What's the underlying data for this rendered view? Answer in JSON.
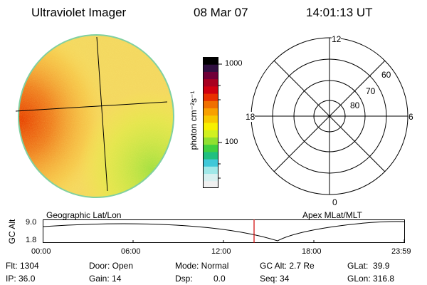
{
  "header": {
    "title": "Ultraviolet Imager",
    "date": "08 Mar 07",
    "time": "14:01:13 UT"
  },
  "colorbar": {
    "ticks": [
      "1000",
      "100"
    ],
    "unit_label": "photon cm⁻²s⁻¹",
    "colors": [
      "#f0f0f0",
      "#d8f0f0",
      "#a0e8e8",
      "#40c8d8",
      "#20c080",
      "#40d040",
      "#90e030",
      "#d0f020",
      "#f8f000",
      "#f8c800",
      "#f8a000",
      "#f07000",
      "#e83000",
      "#d00010",
      "#a80020",
      "#700038",
      "#301040",
      "#000000"
    ]
  },
  "polar": {
    "hour_labels": {
      "top": "12",
      "left": "18",
      "right": "6",
      "bottom": "0"
    },
    "lat_labels": [
      "60",
      "70",
      "80"
    ]
  },
  "timeline": {
    "left_label": "Geographic Lat/Lon",
    "right_label": "Apex MLat/MLT",
    "axis_title": "GC Alt",
    "y_ticks": [
      "9.0",
      "1.8"
    ],
    "x_ticks": [
      "00:00",
      "06:00",
      "12:00",
      "18:00",
      "23:59"
    ],
    "marker_color": "#d00000"
  },
  "info": {
    "flt": "Flt: 1304",
    "ip": "IP: 36.0",
    "door": "Door: Open",
    "gain": "Gain: 14",
    "mode": "Mode: Normal",
    "dsp_label": "Dsp:",
    "dsp_value": "0.0",
    "gc_alt": "GC Alt: 2.7 Re",
    "seq": "Seq: 34",
    "glat": "GLat:  39.9",
    "glon": "GLon: 316.8"
  }
}
